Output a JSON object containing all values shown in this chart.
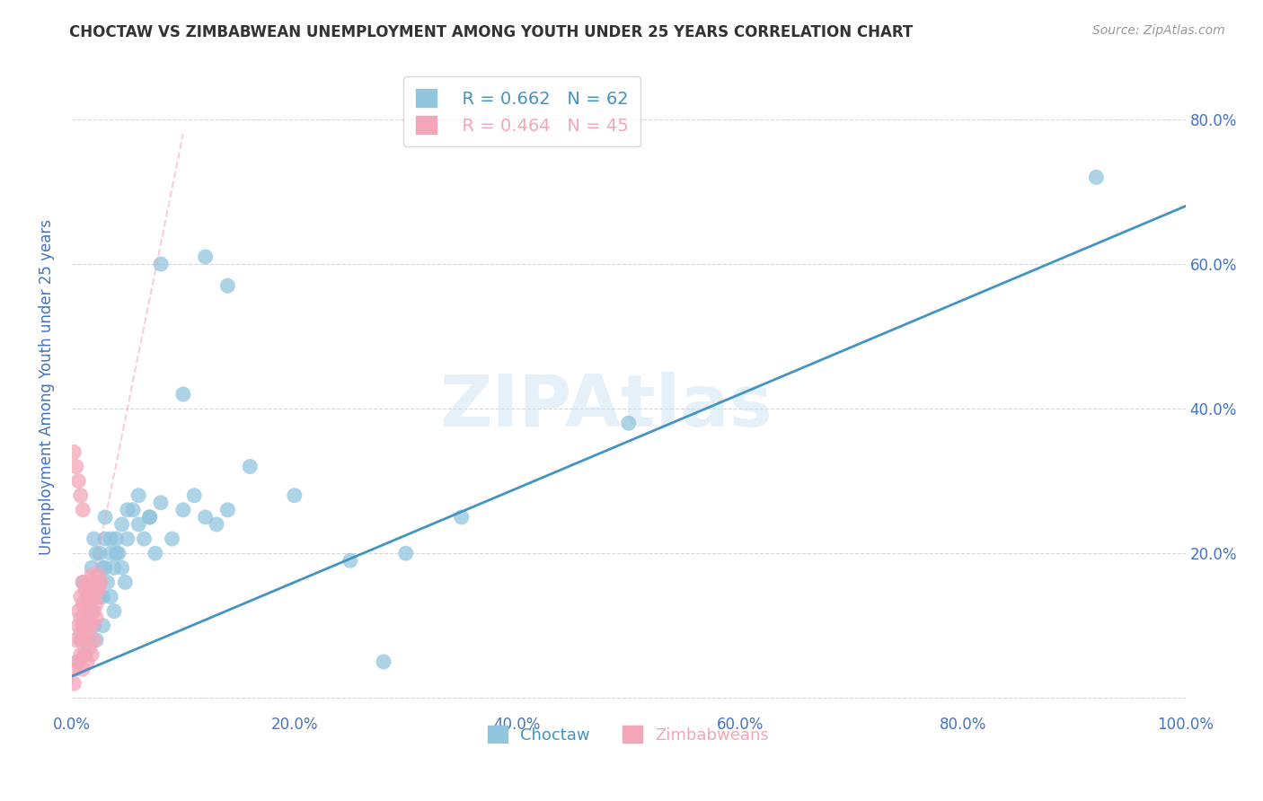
{
  "title": "CHOCTAW VS ZIMBABWEAN UNEMPLOYMENT AMONG YOUTH UNDER 25 YEARS CORRELATION CHART",
  "source": "Source: ZipAtlas.com",
  "ylabel": "Unemployment Among Youth under 25 years",
  "watermark": "ZIPAtlas",
  "xlim": [
    0.0,
    1.0
  ],
  "ylim": [
    -0.02,
    0.88
  ],
  "xticks": [
    0.0,
    0.2,
    0.4,
    0.6,
    0.8,
    1.0
  ],
  "yticks": [
    0.0,
    0.2,
    0.4,
    0.6,
    0.8
  ],
  "xticklabels": [
    "0.0%",
    "20.0%",
    "40.0%",
    "60.0%",
    "80.0%",
    "100.0%"
  ],
  "yticklabels": [
    "",
    "20.0%",
    "40.0%",
    "60.0%",
    "80.0%"
  ],
  "choctaw_color": "#92c5de",
  "zimbabwean_color": "#f4a6b8",
  "trendline_choctaw_color": "#4393c3",
  "trendline_zimbabwean_color": "#f4a6b8",
  "legend_r_choctaw": "R = 0.662",
  "legend_n_choctaw": "N = 62",
  "legend_r_zimbabwean": "R = 0.464",
  "legend_n_zimbabwean": "N = 45",
  "choctaw_x": [
    0.005,
    0.008,
    0.01,
    0.012,
    0.015,
    0.018,
    0.02,
    0.022,
    0.025,
    0.028,
    0.01,
    0.015,
    0.018,
    0.022,
    0.025,
    0.028,
    0.03,
    0.032,
    0.035,
    0.038,
    0.02,
    0.025,
    0.028,
    0.03,
    0.035,
    0.038,
    0.04,
    0.042,
    0.045,
    0.048,
    0.03,
    0.035,
    0.04,
    0.045,
    0.05,
    0.055,
    0.06,
    0.065,
    0.07,
    0.075,
    0.05,
    0.06,
    0.07,
    0.08,
    0.09,
    0.1,
    0.11,
    0.12,
    0.13,
    0.14,
    0.08,
    0.1,
    0.12,
    0.14,
    0.16,
    0.2,
    0.25,
    0.3,
    0.35,
    0.5,
    0.28,
    0.92
  ],
  "choctaw_y": [
    0.05,
    0.08,
    0.1,
    0.06,
    0.08,
    0.12,
    0.1,
    0.08,
    0.14,
    0.1,
    0.16,
    0.14,
    0.18,
    0.2,
    0.16,
    0.14,
    0.18,
    0.16,
    0.14,
    0.12,
    0.22,
    0.2,
    0.18,
    0.22,
    0.2,
    0.18,
    0.22,
    0.2,
    0.18,
    0.16,
    0.25,
    0.22,
    0.2,
    0.24,
    0.22,
    0.26,
    0.24,
    0.22,
    0.25,
    0.2,
    0.26,
    0.28,
    0.25,
    0.27,
    0.22,
    0.26,
    0.28,
    0.25,
    0.24,
    0.26,
    0.6,
    0.42,
    0.61,
    0.57,
    0.32,
    0.28,
    0.19,
    0.2,
    0.25,
    0.38,
    0.05,
    0.72
  ],
  "zimbabwean_x": [
    0.002,
    0.004,
    0.006,
    0.008,
    0.01,
    0.012,
    0.014,
    0.016,
    0.018,
    0.02,
    0.004,
    0.006,
    0.008,
    0.01,
    0.012,
    0.014,
    0.016,
    0.018,
    0.02,
    0.022,
    0.006,
    0.008,
    0.01,
    0.012,
    0.014,
    0.016,
    0.018,
    0.02,
    0.022,
    0.024,
    0.008,
    0.01,
    0.012,
    0.014,
    0.016,
    0.018,
    0.02,
    0.022,
    0.024,
    0.026,
    0.002,
    0.004,
    0.006,
    0.008,
    0.01
  ],
  "zimbabwean_y": [
    0.02,
    0.04,
    0.05,
    0.06,
    0.04,
    0.06,
    0.05,
    0.07,
    0.06,
    0.08,
    0.08,
    0.1,
    0.09,
    0.08,
    0.1,
    0.09,
    0.11,
    0.1,
    0.12,
    0.11,
    0.12,
    0.11,
    0.13,
    0.12,
    0.14,
    0.13,
    0.12,
    0.14,
    0.13,
    0.15,
    0.14,
    0.16,
    0.15,
    0.16,
    0.15,
    0.17,
    0.16,
    0.15,
    0.17,
    0.16,
    0.34,
    0.32,
    0.3,
    0.28,
    0.26
  ],
  "choctaw_trendline_x": [
    0.0,
    1.0
  ],
  "choctaw_trendline_y": [
    0.03,
    0.68
  ],
  "zimbabwean_trendline_x": [
    0.0,
    0.1
  ],
  "zimbabwean_trendline_y": [
    0.02,
    0.78
  ],
  "background_color": "#ffffff",
  "grid_color": "#cccccc",
  "title_color": "#333333",
  "axis_label_color": "#4472c4",
  "tick_color": "#4472c4"
}
